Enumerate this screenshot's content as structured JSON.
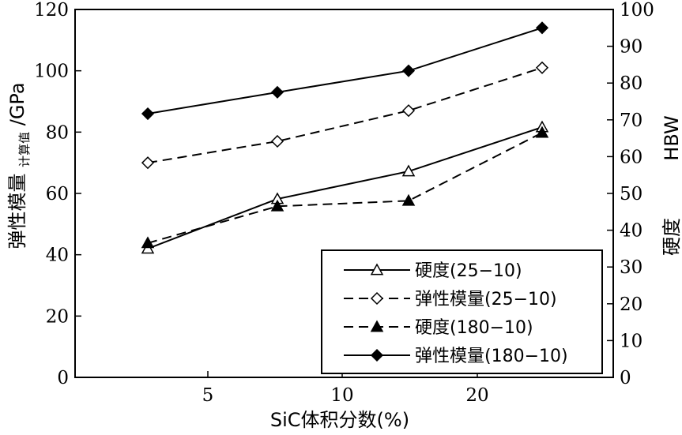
{
  "chart_data": {
    "type": "line",
    "xlabel": "SiC体积分数(%)",
    "ylabel_main": "弹性模量",
    "ylabel_sub": "计算值",
    "ylabel_unit": "/GPa",
    "y2label_main": "硬度",
    "y2label_unit": "HBW",
    "x_categories": [
      "5",
      "10",
      "20"
    ],
    "x": [
      2.9,
      7.5,
      12.4,
      17.2
    ],
    "ylim": [
      0,
      120
    ],
    "y_ticks": [
      "0",
      "20",
      "40",
      "60",
      "80",
      "100",
      "120"
    ],
    "y2lim": [
      0,
      100
    ],
    "y2_ticks": [
      "0",
      "10",
      "20",
      "30",
      "40",
      "50",
      "60",
      "70",
      "80",
      "90",
      "100"
    ],
    "series": [
      {
        "name": "硬度(25−10)",
        "axis": "right",
        "line": "solid",
        "marker": "triangle-open",
        "values": [
          35,
          48.5,
          56,
          68
        ]
      },
      {
        "name": "弹性模量(25−10)",
        "axis": "left",
        "line": "dashed",
        "marker": "diamond-open",
        "values": [
          70,
          77,
          87,
          101
        ]
      },
      {
        "name": "硬度(180−10)",
        "axis": "right",
        "line": "dashed",
        "marker": "triangle-filled",
        "values": [
          36.5,
          46.5,
          48,
          66.5
        ]
      },
      {
        "name": "弹性模量(180−10)",
        "axis": "left",
        "line": "solid",
        "marker": "diamond-filled",
        "values": [
          86,
          93,
          100,
          114
        ]
      }
    ],
    "legend_position": "bottom-right"
  }
}
